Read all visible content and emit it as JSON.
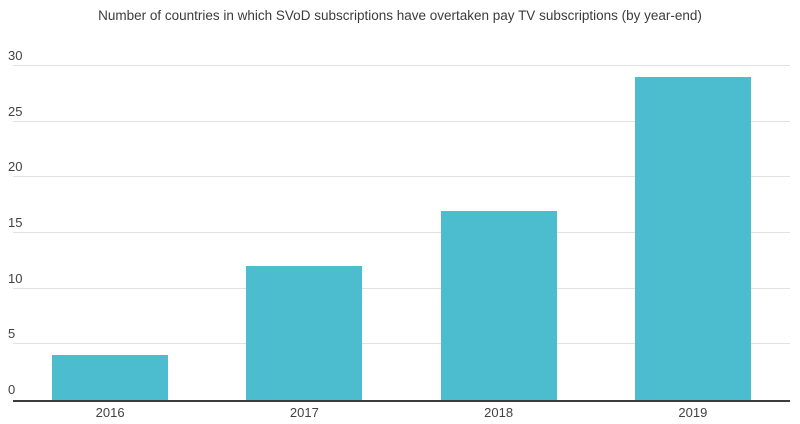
{
  "chart_data": {
    "type": "bar",
    "title": "Number of countries in which SVoD subscriptions have overtaken pay TV subscriptions (by year-end)",
    "categories": [
      "2016",
      "2017",
      "2018",
      "2019"
    ],
    "values": [
      4,
      12,
      17,
      29
    ],
    "xlabel": "",
    "ylabel": "",
    "ylim": [
      0,
      30
    ],
    "yticks": [
      0,
      5,
      10,
      15,
      20,
      25,
      30
    ],
    "grid": true,
    "legend": false,
    "colors": {
      "bar": "#4bbdce",
      "gridline": "#e1e1e1",
      "axis_line": "#3c3c3c",
      "text": "#424242",
      "title_text": "#3c3c3c",
      "background": "#ffffff"
    }
  }
}
